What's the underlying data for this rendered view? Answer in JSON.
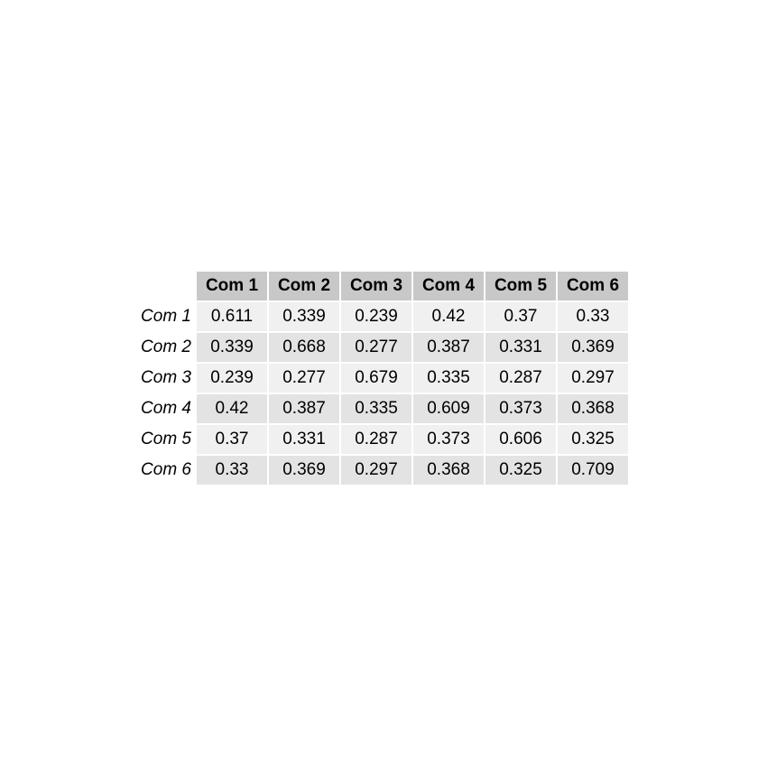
{
  "chart_data": {
    "type": "table",
    "columns": [
      "Com 1",
      "Com 2",
      "Com 3",
      "Com 4",
      "Com 5",
      "Com 6"
    ],
    "rows": [
      {
        "label": "Com 1",
        "values": [
          "0.611",
          "0.339",
          "0.239",
          "0.42",
          "0.37",
          "0.33"
        ]
      },
      {
        "label": "Com 2",
        "values": [
          "0.339",
          "0.668",
          "0.277",
          "0.387",
          "0.331",
          "0.369"
        ]
      },
      {
        "label": "Com 3",
        "values": [
          "0.239",
          "0.277",
          "0.679",
          "0.335",
          "0.287",
          "0.297"
        ]
      },
      {
        "label": "Com 4",
        "values": [
          "0.42",
          "0.387",
          "0.335",
          "0.609",
          "0.373",
          "0.368"
        ]
      },
      {
        "label": "Com 5",
        "values": [
          "0.37",
          "0.331",
          "0.287",
          "0.373",
          "0.606",
          "0.325"
        ]
      },
      {
        "label": "Com 6",
        "values": [
          "0.33",
          "0.369",
          "0.297",
          "0.368",
          "0.325",
          "0.709"
        ]
      }
    ],
    "colors": {
      "header_fill": "#c8c8c8",
      "row_fill_odd": "#f0f0f0",
      "row_fill_even": "#e3e3e3",
      "text": "#000000"
    }
  }
}
